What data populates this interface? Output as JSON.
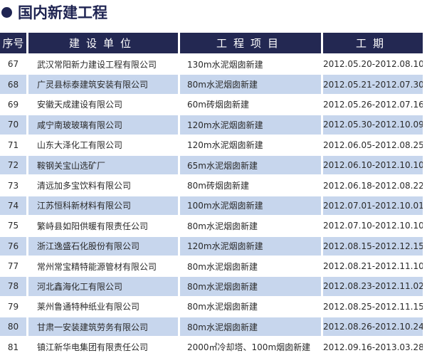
{
  "title": "国内新建工程",
  "colors": {
    "header_bg": "#232852",
    "alt_row_bg": "#c7d6ed",
    "title": "#1f2452"
  },
  "table": {
    "headers": [
      "序号",
      "建设单位",
      "工程项目",
      "工期"
    ],
    "rows": [
      [
        "67",
        "武汉常阳新力建设工程有限公司",
        "130m水泥烟囱新建",
        "2012.05.20-2012.08.10"
      ],
      [
        "68",
        "广灵县标泰建筑安装有限公司",
        "80m水泥烟囱新建",
        "2012.05.21-2012.07.30"
      ],
      [
        "69",
        "安徽天成建设有限公司",
        "60m砖烟囱新建",
        "2012.05.26-2012.07.16"
      ],
      [
        "70",
        "咸宁南玻玻璃有限公司",
        "120m水泥烟囱新建",
        "2012.05.30-2012.10.09"
      ],
      [
        "71",
        "山东大泽化工有限公司",
        "120m水泥烟囱新建",
        "2012.06.05-2012.08.25"
      ],
      [
        "72",
        "鞍钢关宝山选矿厂",
        "65m水泥烟囱新建",
        "2012.06.10-2012.10.10"
      ],
      [
        "73",
        "清远加多宝饮料有限公司",
        "80m砖烟囱新建",
        "2012.06.18-2012.08.22"
      ],
      [
        "74",
        "江苏恒科新材料有限公司",
        "100m水泥烟囱新建",
        "2012.07.01-2012.10.01"
      ],
      [
        "75",
        "繁峙县如阳供暖有限责任公司",
        "80m水泥烟囱新建",
        "2012.07.10-2012.10.10"
      ],
      [
        "76",
        "浙江逸盛石化股份有限公司",
        "120m水泥烟囱新建",
        "2012.08.15-2012.12.15"
      ],
      [
        "77",
        "常州常宝精特能源管材有限公司",
        "80m水泥烟囱新建",
        "2012.08.21-2012.11.10"
      ],
      [
        "78",
        "河北鑫海化工有限公司",
        "80m水泥烟囱新建",
        "2012.08.23-2012.11.02"
      ],
      [
        "79",
        "莱州鲁通特种纸业有限公司",
        "80m水泥烟囱新建",
        "2012.08.25-2012.11.15"
      ],
      [
        "80",
        "甘肃一安装建筑劳务有限公司",
        "80m水泥烟囱新建",
        "2012.08.26-2012.10.24"
      ],
      [
        "81",
        "镇江新华电集团有限责任公司",
        "2000㎡冷却塔、100m烟囱新建",
        "2012.09.16-2013.03.28"
      ]
    ]
  }
}
